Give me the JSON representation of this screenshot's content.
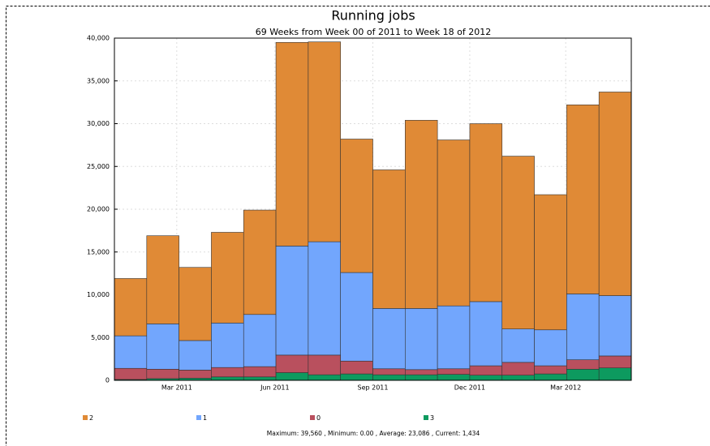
{
  "chart_data": {
    "type": "stacked_bar",
    "title": "Running jobs",
    "subtitle": "69 Weeks from Week 00 of 2011 to Week 18 of 2012",
    "footer": "Maximum: 39,560 , Minimum: 0.00 , Average: 23,086 , Current: 1,434",
    "categories": [
      null,
      null,
      null,
      null,
      null,
      null,
      null,
      null,
      null,
      null,
      null,
      null,
      null,
      null,
      null,
      null
    ],
    "xticks": [
      {
        "value": 1.93,
        "label": "Mar 2011"
      },
      {
        "value": 4.97,
        "label": "Jun 2011"
      },
      {
        "value": 8.0,
        "label": "Sep 2011"
      },
      {
        "value": 11.0,
        "label": "Dec 2011"
      },
      {
        "value": 13.97,
        "label": "Mar 2012"
      }
    ],
    "ylim": [
      0,
      40000
    ],
    "yticks": [
      0,
      {
        "value": 5000,
        "label": "5,000"
      },
      {
        "value": 10000,
        "label": "10,000"
      },
      {
        "value": 15000,
        "label": "15,000"
      },
      {
        "value": 20000,
        "label": "20,000"
      },
      {
        "value": 25000,
        "label": "25,000"
      },
      {
        "value": 30000,
        "label": "30,000"
      },
      {
        "value": 35000,
        "label": "35,000"
      },
      {
        "value": 40000,
        "label": "40,000"
      }
    ],
    "grid": true,
    "series": [
      {
        "name": "2",
        "color": "#e08a36",
        "values": [
          6700,
          10300,
          8550,
          10600,
          12200,
          23800,
          23360,
          15600,
          16200,
          22000,
          19400,
          20800,
          20200,
          15800,
          22100,
          23800
        ]
      },
      {
        "name": "1",
        "color": "#72a6fd",
        "values": [
          3800,
          5300,
          3450,
          5200,
          6100,
          12750,
          13250,
          10350,
          7050,
          7150,
          7350,
          7500,
          3900,
          4200,
          7700,
          7050
        ]
      },
      {
        "name": "0",
        "color": "#b9505e",
        "values": [
          1300,
          1100,
          950,
          1100,
          1200,
          2050,
          2300,
          1500,
          700,
          600,
          650,
          1100,
          1500,
          950,
          1100,
          1400
        ]
      },
      {
        "name": "3",
        "color": "#0d9a5f",
        "values": [
          100,
          200,
          250,
          400,
          400,
          900,
          650,
          750,
          650,
          650,
          700,
          600,
          600,
          750,
          1300,
          1450
        ]
      }
    ]
  }
}
